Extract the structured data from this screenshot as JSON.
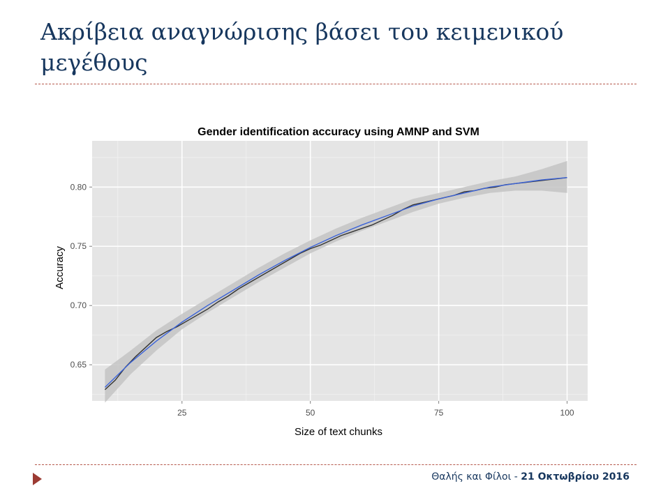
{
  "slide": {
    "title": "Ακρίβεια αναγνώρισης βάσει του κειμενικού μεγέθους",
    "footer_prefix": "Θαλής και Φίλοι - ",
    "footer_date": "21 Οκτωβρίου 2016"
  },
  "colors": {
    "title": "#17375e",
    "divider": "#b5574b",
    "accent": "#9c3b33",
    "panel": "#e5e5e5",
    "band": "#c4c4c4",
    "smooth_line": "#3b63d9",
    "data_line": "#333333"
  },
  "chart_data": {
    "type": "line",
    "title": "Gender identification accuracy using AMNP and SVM",
    "xlabel": "Size of text chunks",
    "ylabel": "Accuracy",
    "xlim": [
      7.5,
      104
    ],
    "ylim": [
      0.6195,
      0.839
    ],
    "xticks": [
      25,
      50,
      75,
      100
    ],
    "yticks": [
      0.65,
      0.7,
      0.75,
      0.8
    ],
    "xtick_labels": [
      "25",
      "50",
      "75",
      "100"
    ],
    "ytick_labels": [
      "0.65",
      "0.70",
      "0.75",
      "0.80"
    ],
    "grid": true,
    "legend": "none",
    "series": [
      {
        "role": "observed",
        "x": [
          10,
          12,
          14,
          16,
          18,
          20,
          22,
          24,
          26,
          28,
          30,
          32,
          34,
          36,
          38,
          40,
          42,
          44,
          46,
          48,
          50,
          52,
          54,
          56,
          58,
          60,
          62,
          64,
          66,
          68,
          70,
          72,
          74,
          76,
          78,
          80,
          82,
          84,
          86,
          88,
          90,
          92,
          94,
          96,
          98,
          100
        ],
        "y": [
          0.629,
          0.637,
          0.648,
          0.657,
          0.665,
          0.673,
          0.678,
          0.682,
          0.687,
          0.692,
          0.697,
          0.703,
          0.708,
          0.714,
          0.719,
          0.724,
          0.729,
          0.734,
          0.739,
          0.744,
          0.748,
          0.751,
          0.755,
          0.759,
          0.762,
          0.765,
          0.768,
          0.772,
          0.776,
          0.781,
          0.785,
          0.787,
          0.789,
          0.791,
          0.793,
          0.796,
          0.797,
          0.799,
          0.8,
          0.802,
          0.803,
          0.804,
          0.805,
          0.806,
          0.807,
          0.808
        ]
      },
      {
        "role": "smoothed",
        "x": [
          10,
          15,
          20,
          25,
          30,
          35,
          40,
          45,
          50,
          55,
          60,
          65,
          70,
          75,
          80,
          85,
          90,
          95,
          100
        ],
        "y": [
          0.631,
          0.652,
          0.67,
          0.686,
          0.7,
          0.713,
          0.726,
          0.738,
          0.749,
          0.759,
          0.768,
          0.776,
          0.784,
          0.79,
          0.795,
          0.8,
          0.803,
          0.806,
          0.808
        ],
        "band_lower": [
          0.618,
          0.642,
          0.662,
          0.68,
          0.694,
          0.707,
          0.72,
          0.732,
          0.744,
          0.754,
          0.763,
          0.771,
          0.779,
          0.786,
          0.791,
          0.795,
          0.797,
          0.797,
          0.795
        ],
        "band_upper": [
          0.646,
          0.662,
          0.679,
          0.693,
          0.706,
          0.719,
          0.732,
          0.744,
          0.755,
          0.765,
          0.774,
          0.782,
          0.79,
          0.795,
          0.8,
          0.805,
          0.809,
          0.815,
          0.822
        ]
      }
    ]
  }
}
